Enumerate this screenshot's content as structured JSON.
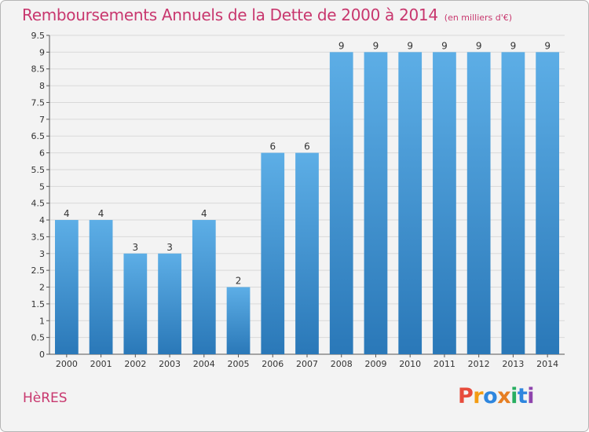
{
  "header": {
    "title": "Remboursements Annuels de la Dette de 2000 à 2014",
    "subtitle": "(en milliers d'€)"
  },
  "footer": {
    "commune": "HèRES",
    "brand": "Proxiti"
  },
  "colors": {
    "title": "#c8376e",
    "bar_top": "#5daee6",
    "bar_bottom": "#2a78b8",
    "background": "#f3f3f3",
    "grid": "#d9d9d9",
    "logo_letters": [
      "#e74c3c",
      "#f39c12",
      "#2e86de",
      "#e67e22",
      "#27ae60",
      "#2e86de",
      "#8e44ad"
    ]
  },
  "chart_data": {
    "type": "bar",
    "title": "Remboursements Annuels de la Dette de 2000 à 2014",
    "subtitle": "(en milliers d'€)",
    "xlabel": "",
    "ylabel": "",
    "categories": [
      "2000",
      "2001",
      "2002",
      "2003",
      "2004",
      "2005",
      "2006",
      "2007",
      "2008",
      "2009",
      "2010",
      "2011",
      "2012",
      "2013",
      "2014"
    ],
    "values": [
      4,
      4,
      3,
      3,
      4,
      2,
      6,
      6,
      9,
      9,
      9,
      9,
      9,
      9,
      9
    ],
    "data_labels": [
      "4",
      "4",
      "3",
      "3",
      "4",
      "2",
      "6",
      "6",
      "9",
      "9",
      "9",
      "9",
      "9",
      "9",
      "9"
    ],
    "ylim": [
      0,
      9.5
    ],
    "yticks": [
      "0",
      "0.5",
      "1",
      "1.5",
      "2",
      "2.5",
      "3",
      "3.5",
      "4",
      "4.5",
      "5",
      "5.5",
      "6",
      "6.5",
      "7",
      "7.5",
      "8",
      "8.5",
      "9",
      "9.5"
    ],
    "ytick_values": [
      0,
      0.5,
      1,
      1.5,
      2,
      2.5,
      3,
      3.5,
      4,
      4.5,
      5,
      5.5,
      6,
      6.5,
      7,
      7.5,
      8,
      8.5,
      9,
      9.5
    ],
    "grid": true,
    "legend": "none"
  }
}
